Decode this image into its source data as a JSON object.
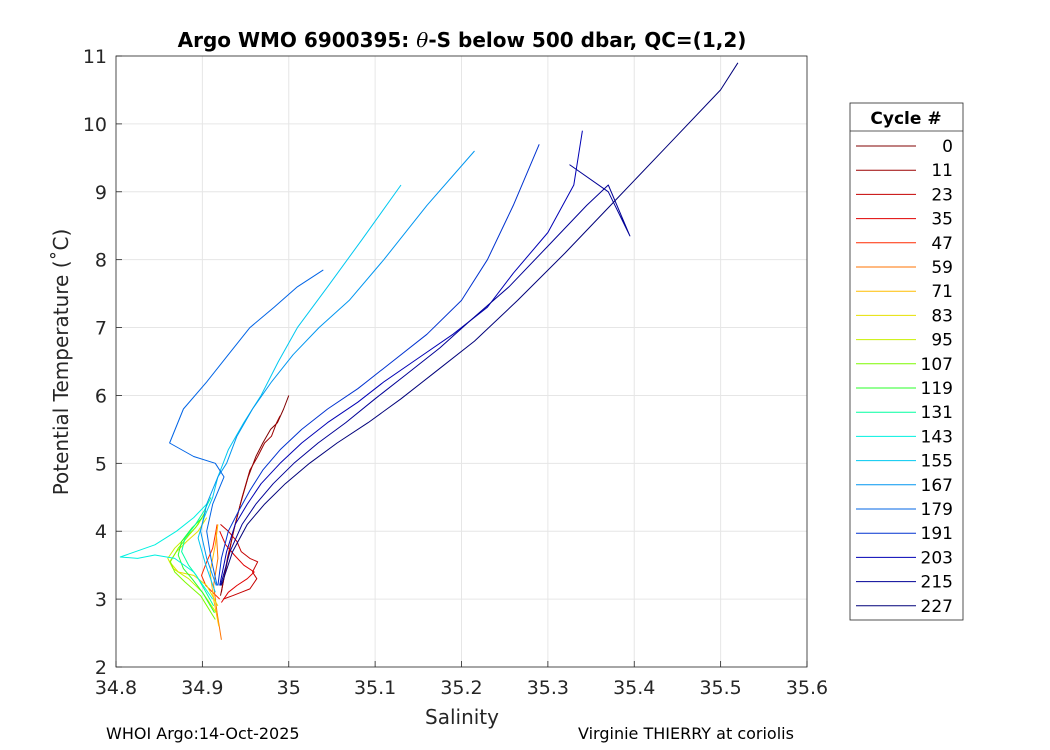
{
  "chart_data": {
    "type": "line",
    "title_prefix": "Argo WMO 6900395: ",
    "title_symbol": "θ",
    "title_suffix": "-S below 500 dbar,  QC=(1,2)",
    "xlabel": "Salinity",
    "ylabel": "Potential Temperature (˚C)",
    "xlim": [
      34.8,
      35.6
    ],
    "ylim": [
      2,
      11
    ],
    "xticks": [
      "34.8",
      "34.9",
      "35",
      "35.1",
      "35.2",
      "35.3",
      "35.4",
      "35.5",
      "35.6"
    ],
    "yticks": [
      "2",
      "3",
      "4",
      "5",
      "6",
      "7",
      "8",
      "9",
      "10",
      "11"
    ],
    "grid": true,
    "legend_title": "Cycle #",
    "legend_position": "right outside",
    "series": [
      {
        "name": "0",
        "color": "#800000",
        "x": [
          34.921,
          34.928,
          34.936,
          34.944,
          34.953,
          34.962,
          34.97,
          34.979,
          34.987,
          34.994,
          35.0
        ],
        "y": [
          3.05,
          3.5,
          4.0,
          4.4,
          4.8,
          5.1,
          5.3,
          5.5,
          5.6,
          5.8,
          6.0
        ]
      },
      {
        "name": "11",
        "color": "#9c0000",
        "x": [
          34.922,
          34.929,
          34.938,
          34.946,
          34.955,
          34.964,
          34.972,
          34.98,
          34.986,
          34.99
        ],
        "y": [
          3.1,
          3.6,
          4.1,
          4.5,
          4.9,
          5.1,
          5.3,
          5.4,
          5.6,
          5.7
        ]
      },
      {
        "name": "23",
        "color": "#c40000",
        "x": [
          34.924,
          34.935,
          34.945,
          34.955,
          34.963,
          34.958,
          34.964,
          34.955,
          34.945,
          34.94,
          34.93,
          34.921
        ],
        "y": [
          3.0,
          3.05,
          3.1,
          3.15,
          3.3,
          3.4,
          3.55,
          3.6,
          3.7,
          3.85,
          4.0,
          4.1
        ]
      },
      {
        "name": "35",
        "color": "#e00000",
        "x": [
          34.922,
          34.93,
          34.94,
          34.952,
          34.96,
          34.948,
          34.937,
          34.927,
          34.92
        ],
        "y": [
          2.95,
          3.1,
          3.2,
          3.3,
          3.4,
          3.5,
          3.65,
          3.8,
          4.0
        ]
      },
      {
        "name": "47",
        "color": "#ff2a00",
        "x": [
          34.92,
          34.912,
          34.904,
          34.899,
          34.905,
          34.912,
          34.915,
          34.917
        ],
        "y": [
          3.0,
          3.1,
          3.2,
          3.35,
          3.55,
          3.75,
          3.95,
          4.1
        ]
      },
      {
        "name": "59",
        "color": "#ff7300",
        "x": [
          34.922,
          34.917,
          34.913,
          34.918,
          34.916
        ],
        "y": [
          2.4,
          2.8,
          3.2,
          3.6,
          4.0
        ]
      },
      {
        "name": "71",
        "color": "#ffbd00",
        "x": [
          34.919,
          34.913,
          34.909,
          34.915,
          34.918
        ],
        "y": [
          2.6,
          3.0,
          3.4,
          3.8,
          4.1
        ]
      },
      {
        "name": "83",
        "color": "#e6e000",
        "x": [
          34.918,
          34.905,
          34.89,
          34.872,
          34.862,
          34.87,
          34.882,
          34.895,
          34.905
        ],
        "y": [
          2.9,
          3.2,
          3.35,
          3.4,
          3.55,
          3.7,
          3.85,
          4.0,
          4.2
        ]
      },
      {
        "name": "95",
        "color": "#c8f000",
        "x": [
          34.916,
          34.9,
          34.884,
          34.866,
          34.86,
          34.868,
          34.88,
          34.892,
          34.902
        ],
        "y": [
          2.8,
          3.1,
          3.3,
          3.45,
          3.6,
          3.75,
          3.9,
          4.05,
          4.25
        ]
      },
      {
        "name": "107",
        "color": "#7dfa00",
        "x": [
          34.915,
          34.898,
          34.88,
          34.868,
          34.863,
          34.872,
          34.885,
          34.895,
          34.904
        ],
        "y": [
          2.7,
          3.05,
          3.25,
          3.4,
          3.55,
          3.75,
          3.95,
          4.1,
          4.3
        ]
      },
      {
        "name": "119",
        "color": "#2aff2a",
        "x": [
          34.914,
          34.9,
          34.888,
          34.878,
          34.872,
          34.876,
          34.888,
          34.9
        ],
        "y": [
          2.8,
          3.1,
          3.3,
          3.45,
          3.65,
          3.85,
          4.05,
          4.2
        ]
      },
      {
        "name": "131",
        "color": "#00ffa0",
        "x": [
          34.913,
          34.902,
          34.893,
          34.884,
          34.876,
          34.88,
          34.892,
          34.902,
          34.91
        ],
        "y": [
          2.9,
          3.15,
          3.35,
          3.5,
          3.7,
          3.9,
          4.1,
          4.3,
          4.5
        ]
      },
      {
        "name": "143",
        "color": "#00f0e0",
        "x": [
          34.912,
          34.89,
          34.868,
          34.845,
          34.825,
          34.805,
          34.845,
          34.87,
          34.89,
          34.905
        ],
        "y": [
          3.0,
          3.4,
          3.6,
          3.65,
          3.6,
          3.62,
          3.8,
          4.0,
          4.2,
          4.4
        ]
      },
      {
        "name": "155",
        "color": "#00c8f0",
        "x": [
          34.915,
          34.904,
          34.895,
          34.902,
          34.912,
          34.918,
          34.93,
          34.948,
          34.968,
          34.988,
          35.01,
          35.045,
          35.085,
          35.13
        ],
        "y": [
          3.1,
          3.5,
          3.9,
          4.2,
          4.5,
          4.8,
          5.2,
          5.6,
          6.0,
          6.5,
          7.0,
          7.6,
          8.3,
          9.1
        ]
      },
      {
        "name": "167",
        "color": "#0096f0",
        "x": [
          34.916,
          34.905,
          34.898,
          34.905,
          34.918,
          34.928,
          34.94,
          34.958,
          34.98,
          35.005,
          35.035,
          35.07,
          35.11,
          35.16,
          35.215
        ],
        "y": [
          3.2,
          3.6,
          4.0,
          4.4,
          4.8,
          5.0,
          5.4,
          5.8,
          6.2,
          6.6,
          7.0,
          7.4,
          8.0,
          8.8,
          9.6
        ]
      },
      {
        "name": "179",
        "color": "#0064e6",
        "x": [
          34.917,
          34.91,
          34.905,
          34.912,
          34.925,
          34.915,
          34.89,
          34.862,
          34.878,
          34.905,
          34.93,
          34.955,
          34.983,
          35.01,
          35.04
        ],
        "y": [
          3.2,
          3.6,
          4.0,
          4.4,
          4.8,
          5.0,
          5.1,
          5.3,
          5.8,
          6.2,
          6.6,
          7.0,
          7.3,
          7.6,
          7.85
        ]
      },
      {
        "name": "191",
        "color": "#0032d0",
        "x": [
          34.918,
          34.922,
          34.93,
          34.942,
          34.955,
          34.97,
          34.99,
          35.015,
          35.045,
          35.08,
          35.12,
          35.16,
          35.2,
          35.23,
          35.26,
          35.29
        ],
        "y": [
          3.2,
          3.6,
          4.0,
          4.3,
          4.6,
          4.9,
          5.2,
          5.5,
          5.8,
          6.1,
          6.5,
          6.9,
          7.4,
          8.0,
          8.8,
          9.7
        ]
      },
      {
        "name": "203",
        "color": "#0000b4",
        "x": [
          34.92,
          34.928,
          34.938,
          34.952,
          34.968,
          34.99,
          35.015,
          35.045,
          35.08,
          35.11,
          35.15,
          35.19,
          35.23,
          35.26,
          35.3,
          35.33,
          35.34
        ],
        "y": [
          3.2,
          3.7,
          4.1,
          4.4,
          4.7,
          5.0,
          5.3,
          5.6,
          5.9,
          6.2,
          6.55,
          6.9,
          7.3,
          7.8,
          8.4,
          9.1,
          9.9
        ]
      },
      {
        "name": "215",
        "color": "#000096",
        "x": [
          34.921,
          34.932,
          34.946,
          34.962,
          34.982,
          35.006,
          35.034,
          35.066,
          35.1,
          35.135,
          35.175,
          35.21,
          35.255,
          35.3,
          35.345,
          35.37,
          35.395,
          35.37,
          35.325
        ],
        "y": [
          3.2,
          3.7,
          4.1,
          4.4,
          4.7,
          5.0,
          5.3,
          5.6,
          5.95,
          6.3,
          6.7,
          7.1,
          7.6,
          8.2,
          8.8,
          9.1,
          8.35,
          9.0,
          9.4
        ]
      },
      {
        "name": "227",
        "color": "#00007a",
        "x": [
          34.922,
          34.935,
          34.952,
          34.972,
          34.996,
          35.024,
          35.056,
          35.092,
          35.13,
          35.17,
          35.215,
          35.265,
          35.32,
          35.38,
          35.44,
          35.5,
          35.52
        ],
        "y": [
          3.2,
          3.7,
          4.1,
          4.4,
          4.7,
          5.0,
          5.3,
          5.6,
          5.95,
          6.35,
          6.8,
          7.4,
          8.1,
          8.9,
          9.7,
          10.5,
          10.9
        ]
      }
    ]
  },
  "footer": {
    "left": "WHOI Argo:14-Oct-2025",
    "right": "Virginie THIERRY at coriolis"
  }
}
